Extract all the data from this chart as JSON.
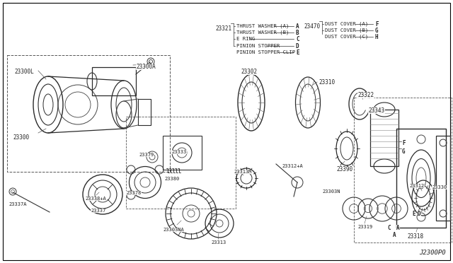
{
  "background_color": "#ffffff",
  "diagram_code": "J2300P0",
  "fig_width": 6.4,
  "fig_height": 3.72,
  "dpi": 100,
  "legend_left_items": [
    {
      "label": "23321",
      "lines": [
        {
          "text": "THRUST WASHER (A)",
          "code": "A"
        },
        {
          "text": "THRUST WASHER (B)",
          "code": "B"
        },
        {
          "text": "E RING",
          "code": "C"
        },
        {
          "text": "PINION STOPPER",
          "code": "D"
        },
        {
          "text": "PINION STOPPER CLIP",
          "code": "E"
        }
      ]
    },
    {
      "label": "23470",
      "lines": [
        {
          "text": "DUST COVER (A)",
          "code": "F"
        },
        {
          "text": "DUST COVER (B)",
          "code": "G"
        },
        {
          "text": "DUST COVER (C)",
          "code": "H"
        }
      ]
    }
  ]
}
